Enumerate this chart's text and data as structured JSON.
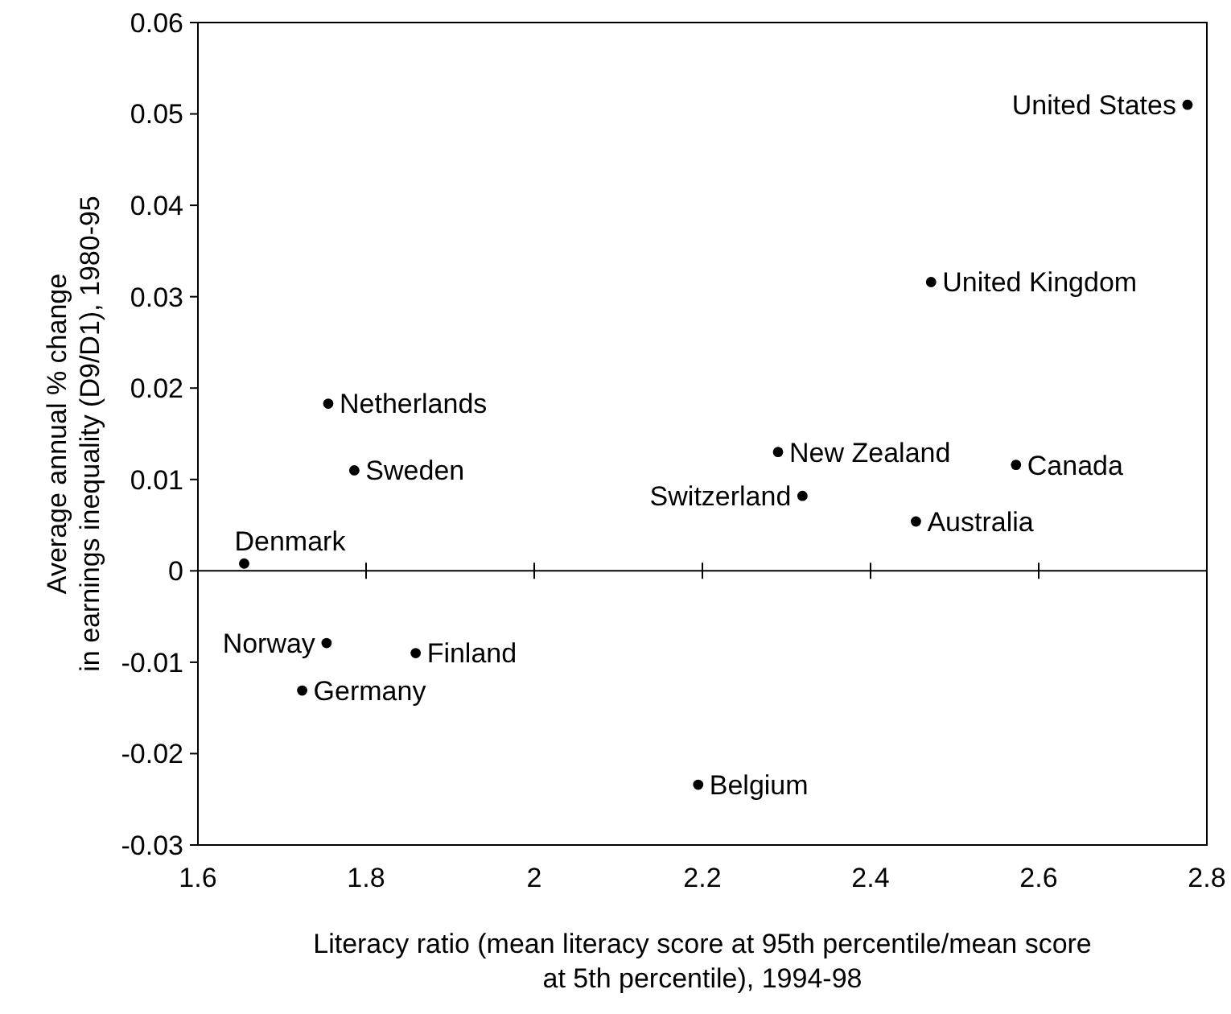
{
  "chart_data": {
    "type": "scatter",
    "xlabel": "Literacy ratio (mean literacy score at 95th percentile/mean score\nat 5th percentile), 1994-98",
    "ylabel": "Average annual % change\nin earnings inequality (D9/D1), 1980-95",
    "series": [
      {
        "color": "#000000",
        "x": [
          2.777,
          2.472,
          1.755,
          1.786,
          2.29,
          2.573,
          2.319,
          2.454,
          1.655,
          1.753,
          1.859,
          1.724,
          2.195
        ],
        "values": [
          0.051,
          0.0316,
          0.0183,
          0.011,
          0.013,
          0.0116,
          0.0082,
          0.0054,
          0.0008,
          -0.0079,
          -0.009,
          -0.0131,
          -0.0234
        ]
      }
    ],
    "annotations": [
      {
        "text": "United States",
        "x": 2.777,
        "y": 0.051
      },
      {
        "text": "United Kingdom",
        "x": 2.472,
        "y": 0.0316
      },
      {
        "text": "Netherlands",
        "x": 1.755,
        "y": 0.0183
      },
      {
        "text": "Sweden",
        "x": 1.786,
        "y": 0.011
      },
      {
        "text": "New Zealand",
        "x": 2.29,
        "y": 0.013
      },
      {
        "text": "Canada",
        "x": 2.573,
        "y": 0.0116
      },
      {
        "text": "Switzerland",
        "x": 2.319,
        "y": 0.0082
      },
      {
        "text": "Australia",
        "x": 2.454,
        "y": 0.0054
      },
      {
        "text": "Denmark",
        "x": 1.655,
        "y": 0.0008
      },
      {
        "text": "Norway",
        "x": 1.753,
        "y": -0.0079
      },
      {
        "text": "Finland",
        "x": 1.859,
        "y": -0.009
      },
      {
        "text": "Germany",
        "x": 1.724,
        "y": -0.0131
      },
      {
        "text": "Belgium",
        "x": 2.195,
        "y": -0.0234
      }
    ],
    "xlim": [
      1.6,
      2.8
    ],
    "xticks": [
      1.6,
      1.8,
      2,
      2.2,
      2.4,
      2.6,
      2.8
    ],
    "ylim": [
      -0.03,
      0.06
    ],
    "yticks": [
      -0.03,
      -0.02,
      -0.01,
      0,
      0.01,
      0.02,
      0.03,
      0.04,
      0.05,
      0.06
    ],
    "marker": "circle"
  }
}
